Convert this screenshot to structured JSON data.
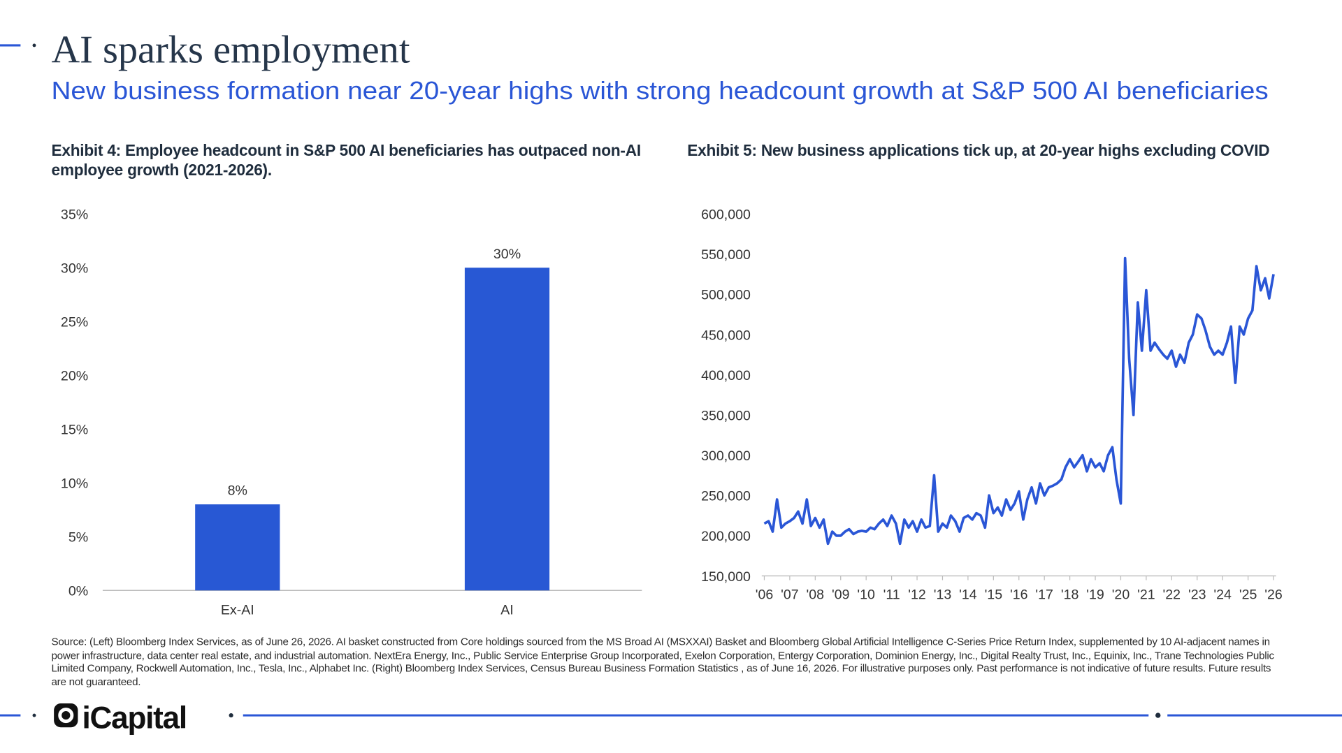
{
  "title": "AI sparks employment",
  "subtitle": "New business formation near 20-year highs with strong headcount growth at S&P 500 AI beneficiaries",
  "source": "Source: (Left) Bloomberg Index Services, as of June 26, 2026. AI basket constructed from Core holdings sourced from the MS Broad AI (MSXXAI) Basket and Bloomberg Global Artificial Intelligence C-Series Price Return Index, supplemented by 10 AI-adjacent names in power infrastructure, data center real estate, and industrial automation. NextEra Energy, Inc., Public Service Enterprise Group Incorporated, Exelon Corporation, Entergy Corporation, Dominion Energy, Inc., Digital Realty Trust, Inc., Equinix, Inc., Trane Technologies Public Limited Company, Rockwell Automation, Inc., Tesla, Inc., Alphabet Inc. (Right) Bloomberg Index Services, Census Bureau Business Formation Statistics , as of June 16, 2026. For illustrative purposes only. Past performance is not indicative of future results. Future results are not guaranteed.",
  "logo": "iCapital",
  "chart_data": [
    {
      "type": "bar",
      "title": "Exhibit 4: Employee headcount in S&P 500 AI beneficiaries has outpaced non-AI employee growth (2021-2026).",
      "categories": [
        "Ex-AI",
        "AI"
      ],
      "values": [
        8,
        30
      ],
      "value_labels": [
        "8%",
        "30%"
      ],
      "color": "#2858d4",
      "ylim": [
        0,
        35
      ],
      "yticks": [
        {
          "value": 0,
          "label": "0%"
        },
        {
          "value": 5,
          "label": "5%"
        },
        {
          "value": 10,
          "label": "10%"
        },
        {
          "value": 15,
          "label": "15%"
        },
        {
          "value": 20,
          "label": "20%"
        },
        {
          "value": 25,
          "label": "25%"
        },
        {
          "value": 30,
          "label": "30%"
        },
        {
          "value": 35,
          "label": "35%"
        }
      ],
      "grid": false
    },
    {
      "type": "line",
      "title": "Exhibit 5: New business applications tick up, at 20-year highs excluding COVID",
      "color": "#2a56d6",
      "x": [
        2006,
        2006.17,
        2006.33,
        2006.5,
        2006.67,
        2006.83,
        2007,
        2007.17,
        2007.33,
        2007.5,
        2007.67,
        2007.83,
        2008,
        2008.17,
        2008.33,
        2008.5,
        2008.67,
        2008.83,
        2009,
        2009.17,
        2009.33,
        2009.5,
        2009.67,
        2009.83,
        2010,
        2010.17,
        2010.33,
        2010.5,
        2010.67,
        2010.83,
        2011,
        2011.17,
        2011.33,
        2011.5,
        2011.67,
        2011.83,
        2012,
        2012.17,
        2012.33,
        2012.5,
        2012.67,
        2012.83,
        2013,
        2013.17,
        2013.33,
        2013.5,
        2013.67,
        2013.83,
        2014,
        2014.17,
        2014.33,
        2014.5,
        2014.67,
        2014.83,
        2015,
        2015.17,
        2015.33,
        2015.5,
        2015.67,
        2015.83,
        2016,
        2016.17,
        2016.33,
        2016.5,
        2016.67,
        2016.83,
        2017,
        2017.17,
        2017.33,
        2017.5,
        2017.67,
        2017.83,
        2018,
        2018.17,
        2018.33,
        2018.5,
        2018.67,
        2018.83,
        2019,
        2019.17,
        2019.33,
        2019.5,
        2019.67,
        2019.83,
        2020,
        2020.17,
        2020.33,
        2020.5,
        2020.67,
        2020.83,
        2021,
        2021.17,
        2021.33,
        2021.5,
        2021.67,
        2021.83,
        2022,
        2022.17,
        2022.33,
        2022.5,
        2022.67,
        2022.83,
        2023,
        2023.17,
        2023.33,
        2023.5,
        2023.67,
        2023.83,
        2024,
        2024.17,
        2024.33,
        2024.5,
        2024.67,
        2024.83,
        2025,
        2025.17,
        2025.33,
        2025.5,
        2025.67,
        2025.83,
        2026
      ],
      "values": [
        215000,
        218000,
        205000,
        245000,
        210000,
        215000,
        218000,
        222000,
        230000,
        215000,
        245000,
        212000,
        222000,
        210000,
        220000,
        190000,
        205000,
        200000,
        200000,
        205000,
        208000,
        202000,
        205000,
        206000,
        205000,
        210000,
        208000,
        215000,
        220000,
        212000,
        225000,
        215000,
        190000,
        220000,
        210000,
        218000,
        205000,
        220000,
        210000,
        212000,
        275000,
        205000,
        215000,
        210000,
        225000,
        218000,
        205000,
        222000,
        225000,
        220000,
        228000,
        225000,
        210000,
        250000,
        228000,
        235000,
        225000,
        245000,
        232000,
        240000,
        255000,
        220000,
        245000,
        260000,
        240000,
        265000,
        250000,
        260000,
        262000,
        265000,
        270000,
        285000,
        295000,
        285000,
        292000,
        300000,
        280000,
        295000,
        285000,
        290000,
        280000,
        300000,
        310000,
        270000,
        240000,
        545000,
        420000,
        350000,
        490000,
        430000,
        505000,
        430000,
        440000,
        432000,
        425000,
        420000,
        430000,
        410000,
        425000,
        415000,
        440000,
        450000,
        475000,
        470000,
        455000,
        435000,
        425000,
        430000,
        425000,
        440000,
        460000,
        390000,
        460000,
        450000,
        470000,
        480000,
        535000,
        505000,
        520000,
        495000,
        525000
      ],
      "xlim": [
        2006,
        2026
      ],
      "xticks": [
        {
          "value": 2006,
          "label": "'06"
        },
        {
          "value": 2007,
          "label": "'07"
        },
        {
          "value": 2008,
          "label": "'08"
        },
        {
          "value": 2009,
          "label": "'09"
        },
        {
          "value": 2010,
          "label": "'10"
        },
        {
          "value": 2011,
          "label": "'11"
        },
        {
          "value": 2012,
          "label": "'12"
        },
        {
          "value": 2013,
          "label": "'13"
        },
        {
          "value": 2014,
          "label": "'14"
        },
        {
          "value": 2015,
          "label": "'15"
        },
        {
          "value": 2016,
          "label": "'16"
        },
        {
          "value": 2017,
          "label": "'17"
        },
        {
          "value": 2018,
          "label": "'18"
        },
        {
          "value": 2019,
          "label": "'19"
        },
        {
          "value": 2020,
          "label": "'20"
        },
        {
          "value": 2021,
          "label": "'21"
        },
        {
          "value": 2022,
          "label": "'22"
        },
        {
          "value": 2023,
          "label": "'23"
        },
        {
          "value": 2024,
          "label": "'24"
        },
        {
          "value": 2025,
          "label": "'25"
        },
        {
          "value": 2026,
          "label": "'26"
        }
      ],
      "ylim": [
        150000,
        600000
      ],
      "yticks": [
        {
          "value": 150000,
          "label": "150,000"
        },
        {
          "value": 200000,
          "label": "200,000"
        },
        {
          "value": 250000,
          "label": "250,000"
        },
        {
          "value": 300000,
          "label": "300,000"
        },
        {
          "value": 350000,
          "label": "350,000"
        },
        {
          "value": 400000,
          "label": "400,000"
        },
        {
          "value": 450000,
          "label": "450,000"
        },
        {
          "value": 500000,
          "label": "500,000"
        },
        {
          "value": 550000,
          "label": "550,000"
        },
        {
          "value": 600000,
          "label": "600,000"
        }
      ],
      "grid": false
    }
  ]
}
